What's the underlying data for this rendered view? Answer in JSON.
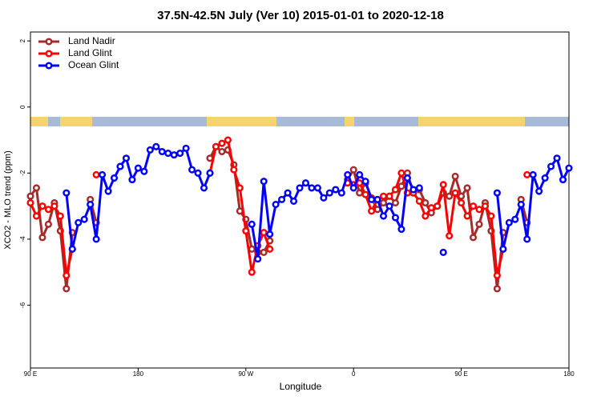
{
  "chart_data": {
    "type": "line",
    "title": "37.5N-42.5N July (Ver 10)   2015-01-01 to 2020-12-18",
    "xlabel": "Longitude",
    "ylabel": "XCO2 - MLO trend (ppm)",
    "xlim": [
      90,
      540
    ],
    "ylim": [
      -7.9,
      2.27
    ],
    "xticks": [
      {
        "value": 90,
        "label": "90 E"
      },
      180,
      {
        "value": 270,
        "label": "90 W"
      },
      {
        "value": 360,
        "label": "0"
      },
      {
        "value": 450,
        "label": "90 E"
      },
      {
        "value": 540,
        "label": "180"
      }
    ],
    "yticks": [
      2,
      0,
      -2,
      -4,
      -6
    ],
    "legend": "upper left",
    "x": [
      90,
      95,
      100,
      105,
      110,
      115,
      120,
      125,
      130,
      135,
      140,
      145,
      150,
      155,
      160,
      165,
      170,
      175,
      180,
      185,
      190,
      195,
      200,
      205,
      210,
      215,
      220,
      225,
      230,
      235,
      240,
      245,
      250,
      255,
      260,
      265,
      270,
      275,
      280,
      285,
      290,
      295,
      300,
      305,
      310,
      315,
      320,
      325,
      330,
      335,
      340,
      345,
      350,
      355,
      360,
      365,
      370,
      375,
      380,
      385,
      390,
      395,
      400,
      405,
      410,
      415,
      420,
      425,
      430,
      435,
      440,
      445,
      450,
      455,
      460,
      465,
      470,
      475,
      480,
      485,
      490,
      495,
      500,
      505,
      510,
      515,
      520,
      525,
      530,
      535,
      540
    ],
    "series": [
      {
        "name": "Land Nadir",
        "color": "#a52a2a",
        "values": [
          -2.7,
          -2.45,
          -3.95,
          -3.55,
          -2.9,
          -3.75,
          -5.5,
          -3.8,
          null,
          null,
          -2.8,
          -3.5,
          null,
          null,
          null,
          null,
          null,
          null,
          null,
          null,
          null,
          null,
          null,
          null,
          null,
          null,
          null,
          null,
          null,
          null,
          -1.55,
          -1.2,
          -1.35,
          -1.3,
          -1.75,
          -3.15,
          -3.4,
          -4.3,
          -4.4,
          -4.4,
          -4.05,
          null,
          null,
          null,
          null,
          null,
          null,
          null,
          null,
          null,
          null,
          null,
          null,
          -2.2,
          -1.9,
          -2.6,
          -2.3,
          -2.75,
          -3.1,
          -2.9,
          -2.7,
          -2.9,
          -2.4,
          -2.0,
          -2.6,
          -2.5,
          -2.9,
          -3.2,
          -3.0,
          -2.6,
          -2.7,
          -2.1,
          -2.7,
          -2.45,
          -3.95,
          -3.55,
          -2.9,
          -3.75,
          -5.5,
          -3.8,
          null,
          null,
          -2.8,
          -3.5,
          null,
          null,
          null,
          null,
          null,
          null,
          null
        ]
      },
      {
        "name": "Land Glint",
        "color": "#ff0000",
        "values": [
          -2.9,
          -3.3,
          -3.0,
          -3.1,
          -3.0,
          -3.3,
          -5.1,
          -4.3,
          null,
          null,
          null,
          -2.05,
          null,
          null,
          null,
          null,
          null,
          null,
          null,
          null,
          null,
          null,
          null,
          null,
          null,
          null,
          null,
          null,
          null,
          null,
          -2.0,
          -1.2,
          -1.1,
          -1.0,
          -1.9,
          -2.45,
          -3.75,
          -5.0,
          -4.2,
          -3.8,
          -4.3,
          null,
          null,
          null,
          null,
          null,
          null,
          null,
          null,
          null,
          null,
          null,
          null,
          -2.3,
          -2.35,
          -2.3,
          -2.65,
          -3.15,
          -2.8,
          -2.7,
          -2.7,
          -2.5,
          -2.0,
          -2.6,
          -2.6,
          -2.85,
          -3.3,
          -3.05,
          -3.0,
          -2.35,
          -3.9,
          -2.6,
          -2.9,
          -3.3,
          -3.0,
          -3.1,
          -3.0,
          -3.3,
          -5.1,
          -4.3,
          null,
          null,
          null,
          -2.05,
          null,
          null,
          null,
          null,
          null,
          null,
          null
        ]
      },
      {
        "name": "Ocean Glint",
        "color": "#0000ff",
        "values": [
          null,
          null,
          null,
          null,
          null,
          null,
          -2.6,
          -4.3,
          -3.5,
          -3.4,
          -2.95,
          -4.0,
          -2.05,
          -2.55,
          -2.15,
          -1.8,
          -1.55,
          -2.2,
          -1.85,
          -1.95,
          -1.3,
          -1.2,
          -1.35,
          -1.4,
          -1.45,
          -1.4,
          -1.25,
          -1.9,
          -2.0,
          -2.45,
          -2.0,
          null,
          null,
          null,
          null,
          null,
          null,
          -3.55,
          -4.6,
          -2.25,
          -3.85,
          -2.95,
          -2.8,
          -2.6,
          -2.85,
          -2.45,
          -2.3,
          -2.45,
          -2.45,
          -2.75,
          -2.6,
          -2.5,
          -2.6,
          -2.05,
          -2.45,
          -2.05,
          -2.25,
          -2.8,
          -2.8,
          -3.3,
          -3.0,
          -3.35,
          -3.7,
          -2.15,
          -2.5,
          -2.45,
          null,
          null,
          null,
          -4.4,
          null,
          null,
          null,
          null,
          null,
          null,
          null,
          null,
          -2.6,
          -4.3,
          -3.5,
          -3.4,
          -2.95,
          -4.0,
          -2.05,
          -2.55,
          -2.15,
          -1.8,
          -1.55,
          -2.2,
          -1.85
        ]
      }
    ]
  }
}
